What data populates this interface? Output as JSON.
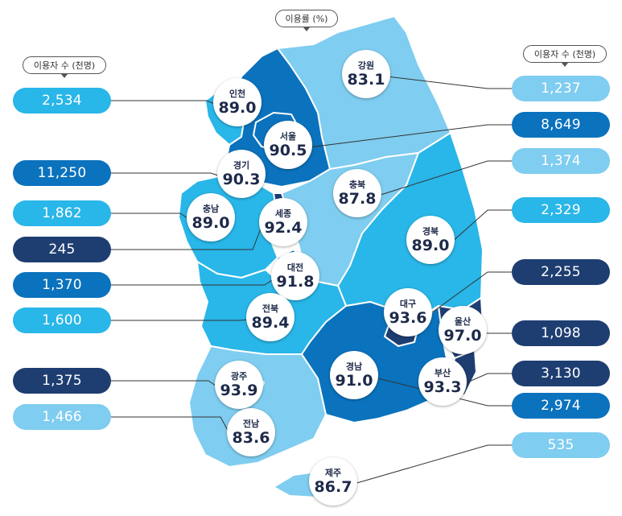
{
  "legend": {
    "rate_label": "이용률 (%)",
    "users_left_label": "이용자 수 (천명)",
    "users_right_label": "이용자 수 (천명)"
  },
  "colors": {
    "lightest": "#7fcdf0",
    "light": "#29b6e8",
    "medium": "#0b72bd",
    "dark": "#1e3e72",
    "border": "#ffffff"
  },
  "regions": [
    {
      "id": "incheon",
      "name": "인천",
      "rate": "89.0",
      "users": "2,534",
      "side": "left",
      "color": "light"
    },
    {
      "id": "seoul",
      "name": "서울",
      "rate": "90.5",
      "users": "8,649",
      "side": "right",
      "color": "medium"
    },
    {
      "id": "gyeonggi",
      "name": "경기",
      "rate": "90.3",
      "users": "11,250",
      "side": "left",
      "color": "medium"
    },
    {
      "id": "gangwon",
      "name": "강원",
      "rate": "83.1",
      "users": "1,237",
      "side": "right",
      "color": "lightest"
    },
    {
      "id": "chungbuk",
      "name": "충북",
      "rate": "87.8",
      "users": "1,374",
      "side": "right",
      "color": "lightest"
    },
    {
      "id": "chungnam",
      "name": "충남",
      "rate": "89.0",
      "users": "1,862",
      "side": "left",
      "color": "light"
    },
    {
      "id": "sejong",
      "name": "세종",
      "rate": "92.4",
      "users": "245",
      "side": "left",
      "color": "dark"
    },
    {
      "id": "daejeon",
      "name": "대전",
      "rate": "91.8",
      "users": "1,370",
      "side": "left",
      "color": "medium"
    },
    {
      "id": "gyeongbuk",
      "name": "경북",
      "rate": "89.0",
      "users": "2,329",
      "side": "right",
      "color": "light"
    },
    {
      "id": "daegu",
      "name": "대구",
      "rate": "93.6",
      "users": "2,255",
      "side": "right",
      "color": "dark"
    },
    {
      "id": "jeonbuk",
      "name": "전북",
      "rate": "89.4",
      "users": "1,600",
      "side": "left",
      "color": "light"
    },
    {
      "id": "ulsan",
      "name": "울산",
      "rate": "97.0",
      "users": "1,098",
      "side": "right",
      "color": "dark"
    },
    {
      "id": "gwangju",
      "name": "광주",
      "rate": "93.9",
      "users": "1,375",
      "side": "left",
      "color": "dark"
    },
    {
      "id": "gyeongnam",
      "name": "경남",
      "rate": "91.0",
      "users": "2,974",
      "side": "right",
      "color": "medium"
    },
    {
      "id": "busan",
      "name": "부산",
      "rate": "93.3",
      "users": "3,130",
      "side": "right",
      "color": "dark"
    },
    {
      "id": "jeonnam",
      "name": "전남",
      "rate": "83.6",
      "users": "1,466",
      "side": "left",
      "color": "lightest"
    },
    {
      "id": "jeju",
      "name": "제주",
      "rate": "86.7",
      "users": "535",
      "side": "right",
      "color": "lightest"
    }
  ]
}
